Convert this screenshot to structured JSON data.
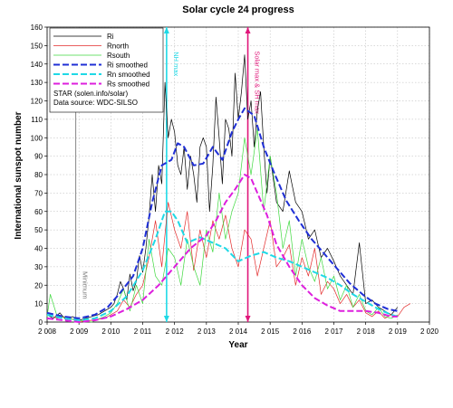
{
  "chart_data": {
    "type": "line",
    "title": "Solar cycle 24 progress",
    "xlabel": "Year",
    "ylabel": "International sunspot number",
    "xlim": [
      2008,
      2020
    ],
    "ylim": [
      0,
      160
    ],
    "x_ticks": [
      2008,
      2009,
      2010,
      2011,
      2012,
      2013,
      2014,
      2015,
      2016,
      2017,
      2018,
      2019,
      2020
    ],
    "x_tick_labels": [
      "2 008",
      "2 009",
      "2 010",
      "2 011",
      "2 012",
      "2 013",
      "2 014",
      "2 015",
      "2 016",
      "2 017",
      "2 018",
      "2 019",
      "2 020"
    ],
    "y_ticks": [
      0,
      10,
      20,
      30,
      40,
      50,
      60,
      70,
      80,
      90,
      100,
      110,
      120,
      130,
      140,
      150,
      160
    ],
    "grid": true,
    "legend_position": "top-left",
    "legend_notes": [
      "STAR (solen.info/solar)",
      "Data source: WDC-SILSO"
    ],
    "series": [
      {
        "name": "Ri",
        "color": "#000000",
        "style": "solid",
        "x": [
          2008.0,
          2008.2,
          2008.4,
          2008.6,
          2008.8,
          2009.0,
          2009.2,
          2009.4,
          2009.6,
          2009.8,
          2010.0,
          2010.1,
          2010.2,
          2010.3,
          2010.4,
          2010.5,
          2010.6,
          2010.7,
          2010.8,
          2010.9,
          2011.0,
          2011.1,
          2011.2,
          2011.3,
          2011.4,
          2011.5,
          2011.6,
          2011.7,
          2011.8,
          2011.9,
          2012.0,
          2012.1,
          2012.2,
          2012.3,
          2012.4,
          2012.5,
          2012.6,
          2012.7,
          2012.8,
          2012.9,
          2013.0,
          2013.1,
          2013.2,
          2013.3,
          2013.4,
          2013.5,
          2013.6,
          2013.7,
          2013.8,
          2013.9,
          2014.0,
          2014.1,
          2014.2,
          2014.3,
          2014.4,
          2014.5,
          2014.6,
          2014.7,
          2014.8,
          2014.9,
          2015.0,
          2015.2,
          2015.4,
          2015.6,
          2015.8,
          2016.0,
          2016.2,
          2016.4,
          2016.6,
          2016.8,
          2017.0,
          2017.2,
          2017.4,
          2017.6,
          2017.8,
          2018.0,
          2018.2,
          2018.4,
          2018.6,
          2018.8,
          2019.0
        ],
        "values": [
          4,
          2,
          5,
          1,
          3,
          1,
          2,
          3,
          4,
          6,
          8,
          10,
          15,
          22,
          18,
          12,
          26,
          17,
          22,
          36,
          27,
          40,
          57,
          80,
          60,
          85,
          75,
          130,
          100,
          110,
          103,
          85,
          80,
          95,
          72,
          90,
          80,
          65,
          95,
          100,
          95,
          60,
          85,
          122,
          100,
          75,
          110,
          105,
          90,
          135,
          110,
          125,
          145,
          110,
          120,
          95,
          115,
          125,
          95,
          70,
          90,
          65,
          60,
          82,
          65,
          60,
          45,
          50,
          35,
          40,
          33,
          25,
          20,
          15,
          43,
          10,
          12,
          8,
          6,
          4,
          8
        ]
      },
      {
        "name": "Rnorth",
        "color": "#e32b2b",
        "style": "solid",
        "x": [
          2008.0,
          2008.3,
          2008.6,
          2009.0,
          2009.4,
          2009.8,
          2010.0,
          2010.2,
          2010.4,
          2010.6,
          2010.8,
          2011.0,
          2011.2,
          2011.4,
          2011.6,
          2011.8,
          2012.0,
          2012.2,
          2012.4,
          2012.6,
          2012.8,
          2013.0,
          2013.2,
          2013.4,
          2013.6,
          2013.8,
          2014.0,
          2014.2,
          2014.4,
          2014.6,
          2014.8,
          2015.0,
          2015.2,
          2015.4,
          2015.6,
          2015.8,
          2016.0,
          2016.2,
          2016.4,
          2016.6,
          2016.8,
          2017.0,
          2017.2,
          2017.4,
          2017.6,
          2017.8,
          2018.0,
          2018.2,
          2018.4,
          2018.6,
          2018.8,
          2019.0,
          2019.2,
          2019.4
        ],
        "values": [
          5,
          2,
          3,
          0,
          1,
          2,
          4,
          6,
          12,
          8,
          15,
          20,
          35,
          55,
          30,
          65,
          50,
          40,
          60,
          28,
          50,
          35,
          55,
          45,
          58,
          40,
          30,
          50,
          45,
          25,
          40,
          55,
          30,
          35,
          42,
          20,
          35,
          25,
          40,
          15,
          22,
          18,
          10,
          15,
          8,
          12,
          5,
          3,
          6,
          2,
          4,
          3,
          8,
          10
        ]
      },
      {
        "name": "Rsouth",
        "color": "#3fd93f",
        "style": "solid",
        "x": [
          2008.0,
          2008.1,
          2008.3,
          2008.6,
          2009.0,
          2009.4,
          2009.8,
          2010.0,
          2010.2,
          2010.4,
          2010.6,
          2010.8,
          2011.0,
          2011.2,
          2011.4,
          2011.6,
          2011.8,
          2012.0,
          2012.2,
          2012.4,
          2012.6,
          2012.8,
          2013.0,
          2013.2,
          2013.4,
          2013.6,
          2013.8,
          2014.0,
          2014.2,
          2014.4,
          2014.6,
          2014.8,
          2015.0,
          2015.2,
          2015.4,
          2015.6,
          2015.8,
          2016.0,
          2016.2,
          2016.4,
          2016.6,
          2016.8,
          2017.0,
          2017.2,
          2017.4,
          2017.6,
          2017.8,
          2018.0,
          2018.2,
          2018.4,
          2018.6,
          2018.8,
          2019.0
        ],
        "values": [
          3,
          15,
          4,
          2,
          1,
          0,
          3,
          5,
          10,
          18,
          6,
          20,
          10,
          45,
          25,
          20,
          40,
          35,
          20,
          45,
          30,
          20,
          50,
          38,
          70,
          45,
          60,
          70,
          100,
          80,
          105,
          60,
          90,
          70,
          40,
          55,
          25,
          45,
          30,
          22,
          35,
          18,
          25,
          12,
          20,
          8,
          15,
          6,
          4,
          8,
          3,
          2,
          4
        ]
      },
      {
        "name": "Ri smoothed",
        "color": "#1f2fd6",
        "style": "dashed",
        "x": [
          2008.0,
          2008.5,
          2009.0,
          2009.5,
          2009.9,
          2010.3,
          2010.7,
          2011.0,
          2011.3,
          2011.6,
          2011.9,
          2012.1,
          2012.3,
          2012.6,
          2012.9,
          2013.2,
          2013.5,
          2013.8,
          2014.0,
          2014.2,
          2014.5,
          2014.8,
          2015.1,
          2015.5,
          2015.9,
          2016.3,
          2016.7,
          2017.1,
          2017.5,
          2017.9,
          2018.3,
          2018.7,
          2019.0
        ],
        "values": [
          5,
          3,
          2,
          4,
          8,
          16,
          25,
          40,
          65,
          85,
          88,
          97,
          95,
          85,
          86,
          95,
          88,
          103,
          110,
          116,
          112,
          95,
          82,
          66,
          55,
          45,
          37,
          29,
          21,
          15,
          10,
          7,
          6
        ]
      },
      {
        "name": "Rn smoothed",
        "color": "#1fd9e6",
        "style": "dashed",
        "x": [
          2008.0,
          2008.5,
          2009.0,
          2009.5,
          2010.0,
          2010.5,
          2011.0,
          2011.4,
          2011.7,
          2011.9,
          2012.1,
          2012.4,
          2012.8,
          2013.2,
          2013.6,
          2014.0,
          2014.4,
          2014.8,
          2015.2,
          2015.6,
          2016.0,
          2016.4,
          2016.8,
          2017.2,
          2017.6,
          2018.0,
          2018.4,
          2018.8,
          2019.0
        ],
        "values": [
          4,
          2,
          1,
          2,
          6,
          14,
          28,
          45,
          60,
          60,
          55,
          43,
          46,
          43,
          40,
          33,
          36,
          38,
          35,
          33,
          30,
          27,
          24,
          20,
          15,
          11,
          7,
          4,
          3
        ]
      },
      {
        "name": "Rs smoothed",
        "color": "#dd1fdd",
        "style": "dashed",
        "x": [
          2008.0,
          2008.5,
          2009.0,
          2009.5,
          2010.0,
          2010.5,
          2011.0,
          2011.5,
          2012.0,
          2012.5,
          2013.0,
          2013.3,
          2013.6,
          2013.9,
          2014.2,
          2014.4,
          2014.6,
          2014.9,
          2015.2,
          2015.6,
          2016.0,
          2016.4,
          2016.8,
          2017.2,
          2017.6,
          2018.0,
          2018.4,
          2018.8,
          2019.0
        ],
        "values": [
          2,
          1,
          0,
          1,
          3,
          7,
          12,
          20,
          30,
          40,
          47,
          55,
          65,
          72,
          80,
          78,
          70,
          58,
          42,
          30,
          20,
          13,
          9,
          6,
          6,
          6,
          5,
          3,
          3
        ]
      }
    ],
    "markers": [
      {
        "label": "Minimum",
        "x": 2008.9,
        "color": "#7a7a7a",
        "style": "solid",
        "arrow": false,
        "label_y": 20
      },
      {
        "label": "NH max",
        "x": 2011.75,
        "color": "#1fd9e6",
        "style": "solid",
        "arrow": true,
        "label_y": 140
      },
      {
        "label": "Solar max & SH max",
        "x": 2014.3,
        "color": "#e0177a",
        "style": "solid",
        "arrow": true,
        "label_y": 130
      }
    ]
  }
}
